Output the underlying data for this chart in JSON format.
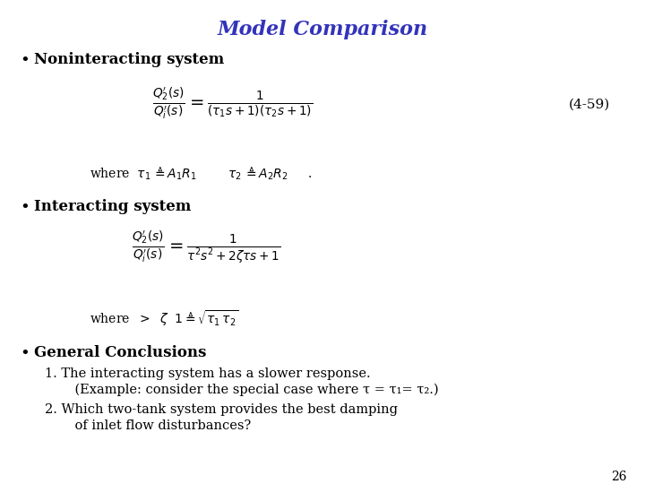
{
  "title": "Model Comparison",
  "title_color": "#3333BB",
  "title_fontsize": 16,
  "background_color": "#FFFFFF",
  "text_color": "#000000",
  "bullet1": "Noninteracting system",
  "eq1_label": "(4-59)",
  "bullet2": "Interacting system",
  "bullet3": "General Conclusions",
  "conclusion1a": "1. The interacting system has a slower response.",
  "conclusion1b": "    (Example: consider the special case where τ = τ₁= τ₂.)",
  "conclusion2a": "2. Which two-tank system provides the best damping",
  "conclusion2b": "    of inlet flow disturbances?",
  "page_number": "26",
  "bullet_fontsize": 12,
  "eq_fontsize": 11,
  "where_fontsize": 10,
  "conclusion_fontsize": 10.5,
  "page_fontsize": 10
}
